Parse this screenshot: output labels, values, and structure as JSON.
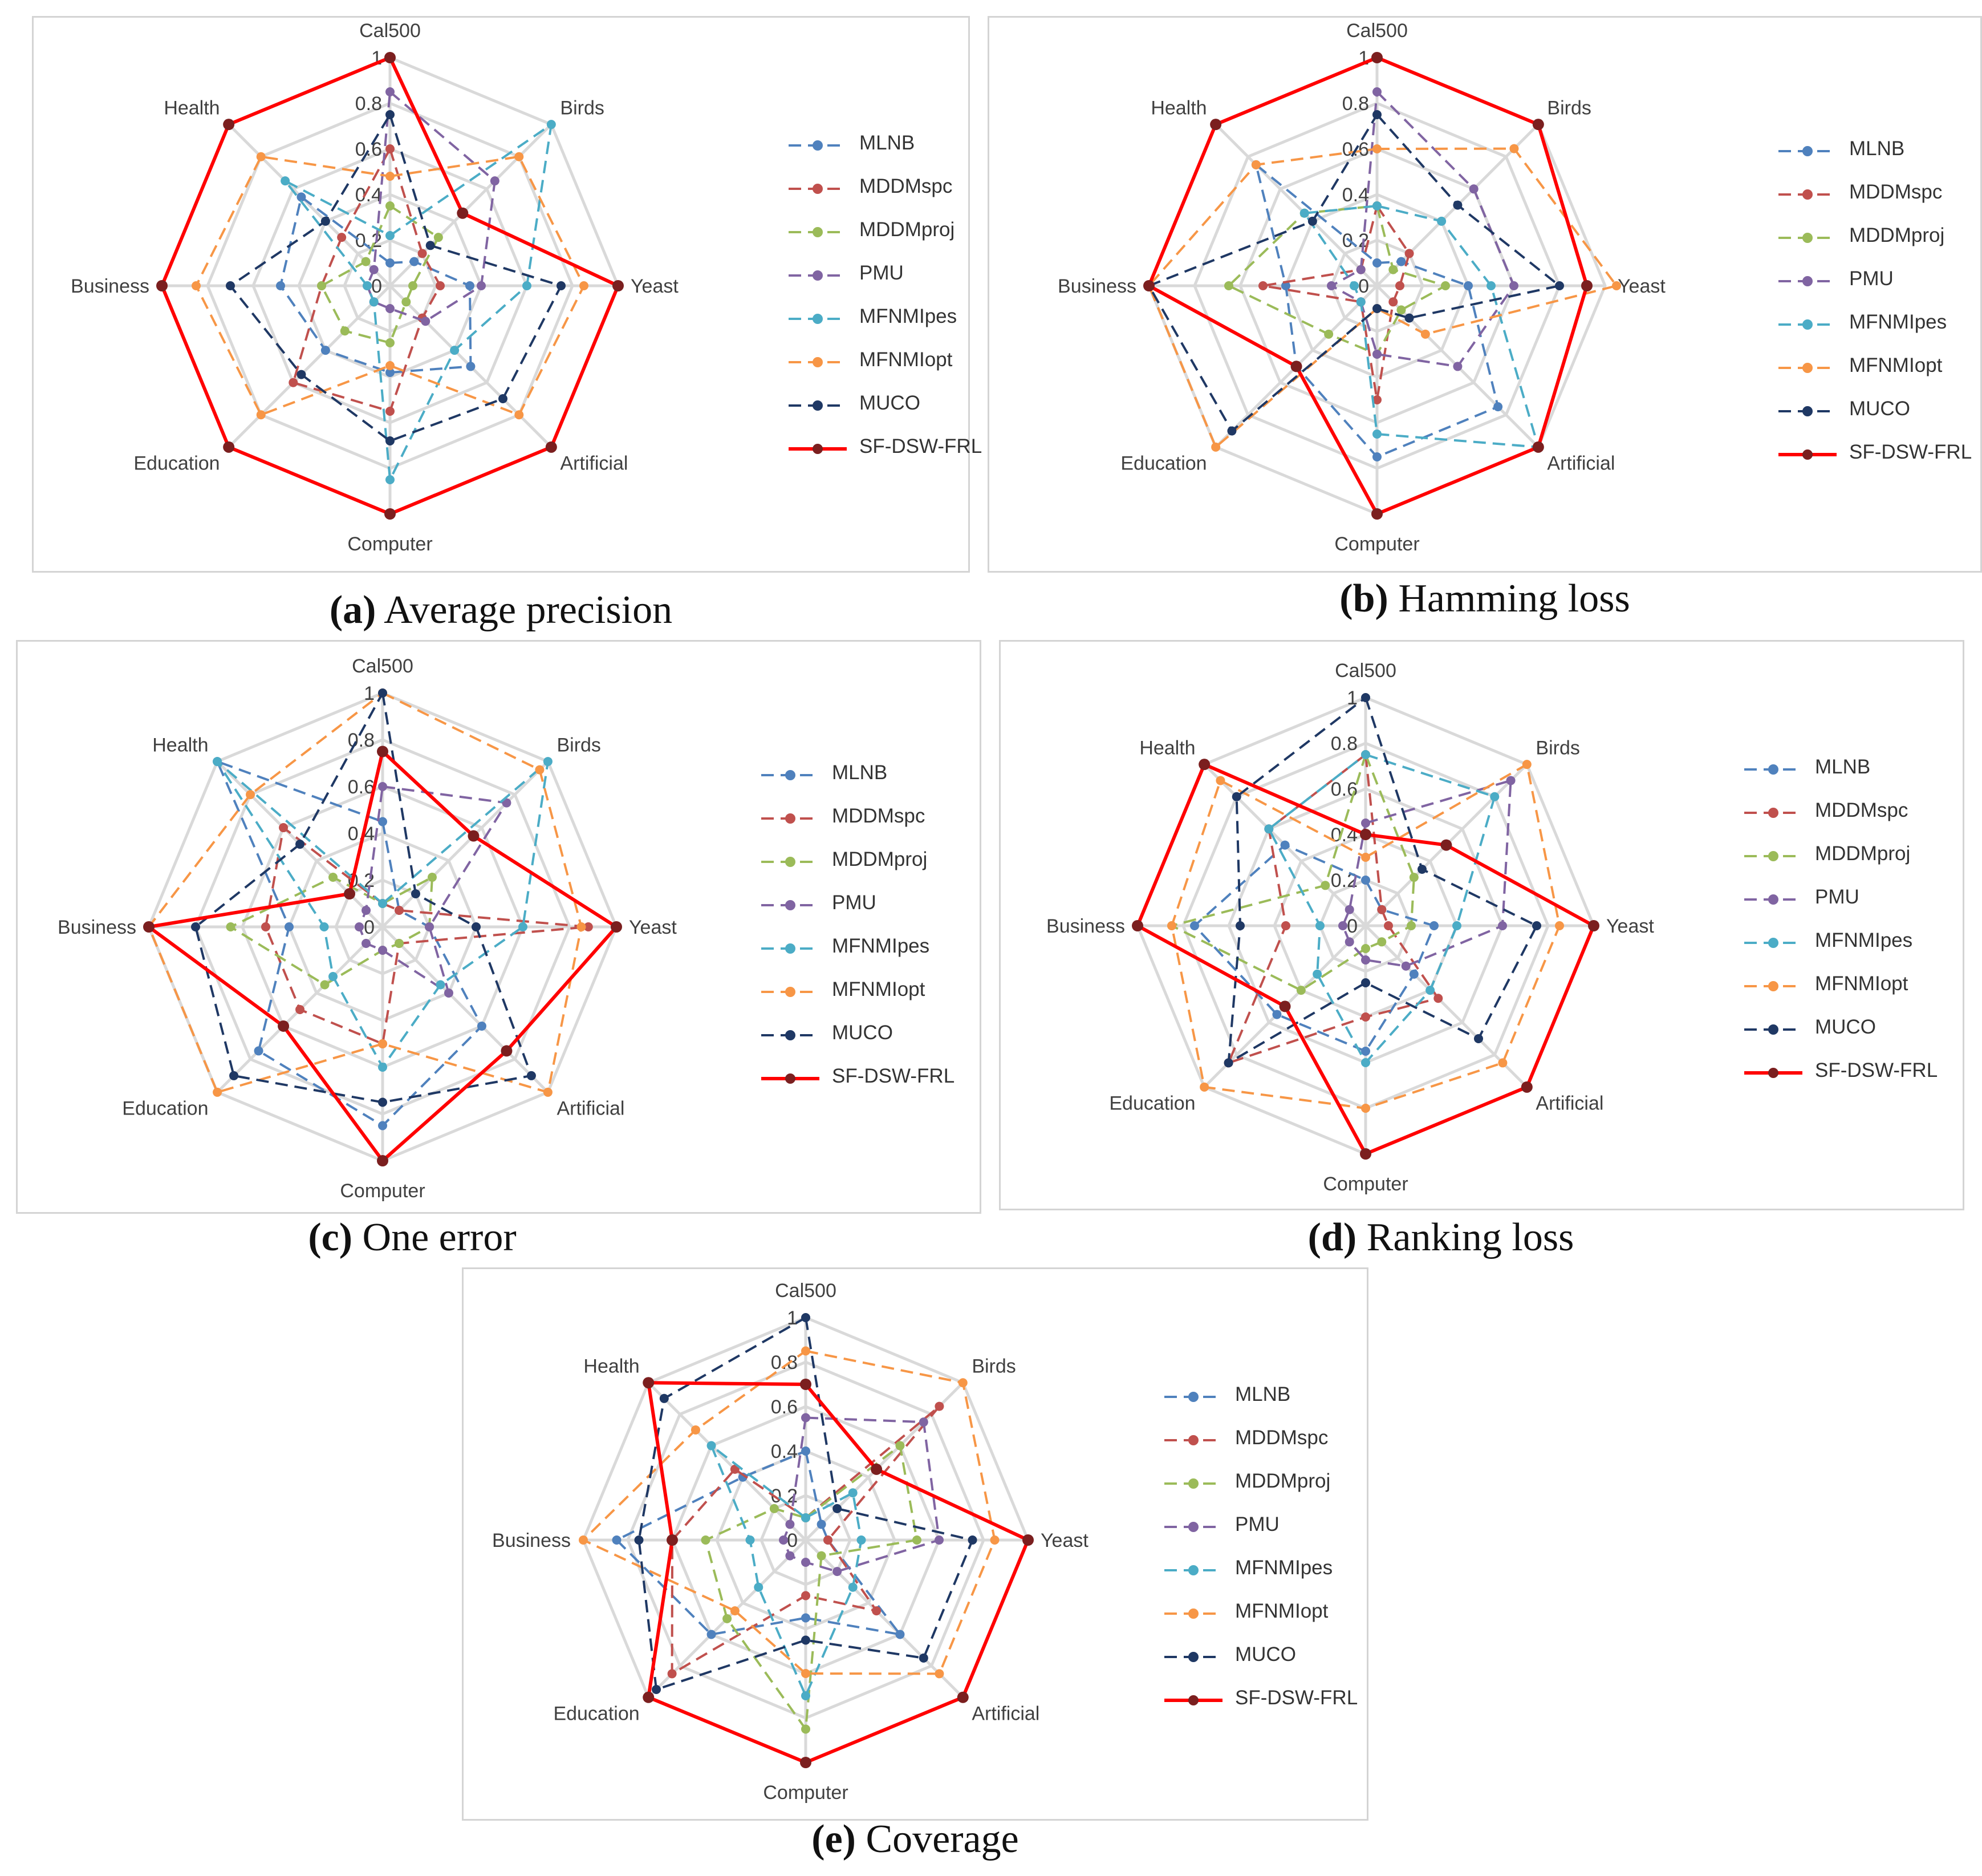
{
  "categories": [
    "Cal500",
    "Birds",
    "Yeast",
    "Artificial",
    "Computer",
    "Education",
    "Business",
    "Health"
  ],
  "ticks": [
    "0",
    "0.2",
    "0.4",
    "0.6",
    "0.8",
    "1"
  ],
  "series_names": [
    "MLNB",
    "MDDMspc",
    "MDDMproj",
    "PMU",
    "MFNMIpes",
    "MFNMIopt",
    "MUCO",
    "SF-DSW-FRL"
  ],
  "series_colors": [
    "#4f81bd",
    "#c0504d",
    "#9bbb59",
    "#8064a2",
    "#4bacc6",
    "#f79646",
    "#1f3864",
    "#ff0000"
  ],
  "marker_colors": [
    "#4f81bd",
    "#c0504d",
    "#9bbb59",
    "#8064a2",
    "#4bacc6",
    "#f79646",
    "#1f3864",
    "#7b1f1f"
  ],
  "chart_data": [
    {
      "type": "radar",
      "caption_letter": "(a)",
      "caption_text": " Average precision",
      "ylim": [
        0,
        1
      ],
      "series": [
        {
          "name": "MLNB",
          "values": [
            0.1,
            0.15,
            0.35,
            0.5,
            0.38,
            0.4,
            0.48,
            0.55
          ]
        },
        {
          "name": "MDDMspc",
          "values": [
            0.6,
            0.2,
            0.22,
            0.2,
            0.55,
            0.6,
            0.3,
            0.3
          ]
        },
        {
          "name": "MDDMproj",
          "values": [
            0.35,
            0.3,
            0.1,
            0.1,
            0.25,
            0.28,
            0.3,
            0.15
          ]
        },
        {
          "name": "PMU",
          "values": [
            0.85,
            0.65,
            0.4,
            0.22,
            0.1,
            0.1,
            0.1,
            0.1
          ]
        },
        {
          "name": "MFNMIpes",
          "values": [
            0.22,
            1.0,
            0.6,
            0.4,
            0.85,
            0.1,
            0.1,
            0.65
          ]
        },
        {
          "name": "MFNMIopt",
          "values": [
            0.48,
            0.8,
            0.85,
            0.8,
            0.35,
            0.8,
            0.85,
            0.8
          ]
        },
        {
          "name": "MUCO",
          "values": [
            0.75,
            0.25,
            0.75,
            0.7,
            0.68,
            0.55,
            0.7,
            0.4
          ]
        },
        {
          "name": "SF-DSW-FRL",
          "values": [
            1.0,
            0.45,
            1.0,
            1.0,
            1.0,
            1.0,
            1.0,
            1.0
          ]
        }
      ]
    },
    {
      "type": "radar",
      "caption_letter": "(b)",
      "caption_text": " Hamming loss",
      "ylim": [
        0,
        1
      ],
      "series": [
        {
          "name": "MLNB",
          "values": [
            0.1,
            0.15,
            0.4,
            0.75,
            0.75,
            0.5,
            0.4,
            0.75
          ]
        },
        {
          "name": "MDDMspc",
          "values": [
            0.35,
            0.2,
            0.1,
            0.1,
            0.5,
            0.1,
            0.5,
            0.1
          ]
        },
        {
          "name": "MDDMproj",
          "values": [
            0.35,
            0.1,
            0.3,
            0.15,
            0.3,
            0.3,
            0.65,
            0.45
          ]
        },
        {
          "name": "PMU",
          "values": [
            0.85,
            0.6,
            0.6,
            0.5,
            0.3,
            0.1,
            0.2,
            0.1
          ]
        },
        {
          "name": "MFNMIpes",
          "values": [
            0.35,
            0.4,
            0.5,
            1.0,
            0.65,
            0.1,
            0.1,
            0.45
          ]
        },
        {
          "name": "MFNMIopt",
          "values": [
            0.6,
            0.85,
            1.05,
            0.3,
            0.1,
            1.0,
            1.0,
            0.75
          ]
        },
        {
          "name": "MUCO",
          "values": [
            0.75,
            0.5,
            0.8,
            0.2,
            0.1,
            0.9,
            1.0,
            0.4
          ]
        },
        {
          "name": "SF-DSW-FRL",
          "values": [
            1.0,
            1.0,
            0.92,
            1.0,
            1.0,
            0.5,
            1.0,
            1.0
          ]
        }
      ]
    },
    {
      "type": "radar",
      "caption_letter": "(c)",
      "caption_text": " One error",
      "ylim": [
        0,
        1
      ],
      "series": [
        {
          "name": "MLNB",
          "values": [
            0.45,
            0.1,
            0.2,
            0.6,
            0.85,
            0.75,
            0.4,
            1.0
          ]
        },
        {
          "name": "MDDMspc",
          "values": [
            0.1,
            0.1,
            0.88,
            0.1,
            0.5,
            0.5,
            0.5,
            0.6
          ]
        },
        {
          "name": "MDDMproj",
          "values": [
            0.1,
            0.3,
            0.2,
            0.1,
            0.1,
            0.35,
            0.65,
            0.3
          ]
        },
        {
          "name": "PMU",
          "values": [
            0.6,
            0.75,
            0.2,
            0.4,
            0.1,
            0.1,
            0.1,
            0.1
          ]
        },
        {
          "name": "MFNMIpes",
          "values": [
            0.1,
            1.0,
            0.6,
            0.35,
            0.6,
            0.3,
            0.25,
            1.0
          ]
        },
        {
          "name": "MFNMIopt",
          "values": [
            1.0,
            0.95,
            0.85,
            1.0,
            0.5,
            1.0,
            1.0,
            0.8
          ]
        },
        {
          "name": "MUCO",
          "values": [
            1.0,
            0.2,
            0.4,
            0.9,
            0.75,
            0.9,
            0.8,
            0.5
          ]
        },
        {
          "name": "SF-DSW-FRL",
          "values": [
            0.75,
            0.55,
            1.0,
            0.75,
            1.0,
            0.6,
            1.0,
            0.2
          ]
        }
      ]
    },
    {
      "type": "radar",
      "caption_letter": "(d)",
      "caption_text": " Ranking loss",
      "ylim": [
        0,
        1
      ],
      "series": [
        {
          "name": "MLNB",
          "values": [
            0.2,
            0.1,
            0.3,
            0.3,
            0.55,
            0.55,
            0.75,
            0.5
          ]
        },
        {
          "name": "MDDMspc",
          "values": [
            0.75,
            0.1,
            0.1,
            0.45,
            0.4,
            0.85,
            0.35,
            0.6
          ]
        },
        {
          "name": "MDDMproj",
          "values": [
            0.75,
            0.3,
            0.2,
            0.1,
            0.1,
            0.4,
            0.85,
            0.25
          ]
        },
        {
          "name": "PMU",
          "values": [
            0.45,
            0.9,
            0.6,
            0.25,
            0.15,
            0.1,
            0.1,
            0.1
          ]
        },
        {
          "name": "MFNMIpes",
          "values": [
            0.75,
            0.8,
            0.4,
            0.4,
            0.6,
            0.3,
            0.2,
            0.6
          ]
        },
        {
          "name": "MFNMIopt",
          "values": [
            0.3,
            1.0,
            0.85,
            0.85,
            0.8,
            1.0,
            0.85,
            0.9
          ]
        },
        {
          "name": "MUCO",
          "values": [
            1.0,
            0.35,
            0.75,
            0.7,
            0.25,
            0.85,
            0.55,
            0.8
          ]
        },
        {
          "name": "SF-DSW-FRL",
          "values": [
            0.4,
            0.5,
            1.0,
            1.0,
            1.0,
            0.5,
            1.0,
            1.0
          ]
        }
      ]
    },
    {
      "type": "radar",
      "caption_letter": "(e)",
      "caption_text": " Coverage",
      "ylim": [
        0,
        1
      ],
      "series": [
        {
          "name": "MLNB",
          "values": [
            0.4,
            0.1,
            0.1,
            0.6,
            0.35,
            0.6,
            0.85,
            0.4
          ]
        },
        {
          "name": "MDDMspc",
          "values": [
            0.1,
            0.85,
            0.1,
            0.45,
            0.25,
            0.85,
            0.6,
            0.45
          ]
        },
        {
          "name": "MDDMproj",
          "values": [
            0.1,
            0.6,
            0.5,
            0.1,
            0.85,
            0.5,
            0.45,
            0.2
          ]
        },
        {
          "name": "PMU",
          "values": [
            0.55,
            0.75,
            0.6,
            0.2,
            0.1,
            0.1,
            0.1,
            0.1
          ]
        },
        {
          "name": "MFNMIpes",
          "values": [
            0.1,
            0.3,
            0.25,
            0.3,
            0.7,
            0.3,
            0.25,
            0.6
          ]
        },
        {
          "name": "MFNMIopt",
          "values": [
            0.85,
            1.0,
            0.85,
            0.85,
            0.6,
            0.45,
            1.0,
            0.7
          ]
        },
        {
          "name": "MUCO",
          "values": [
            1.0,
            0.2,
            0.75,
            0.75,
            0.45,
            0.95,
            0.75,
            0.9
          ]
        },
        {
          "name": "SF-DSW-FRL",
          "values": [
            0.7,
            0.45,
            1.0,
            1.0,
            1.0,
            1.0,
            0.6,
            1.0
          ]
        }
      ]
    }
  ]
}
